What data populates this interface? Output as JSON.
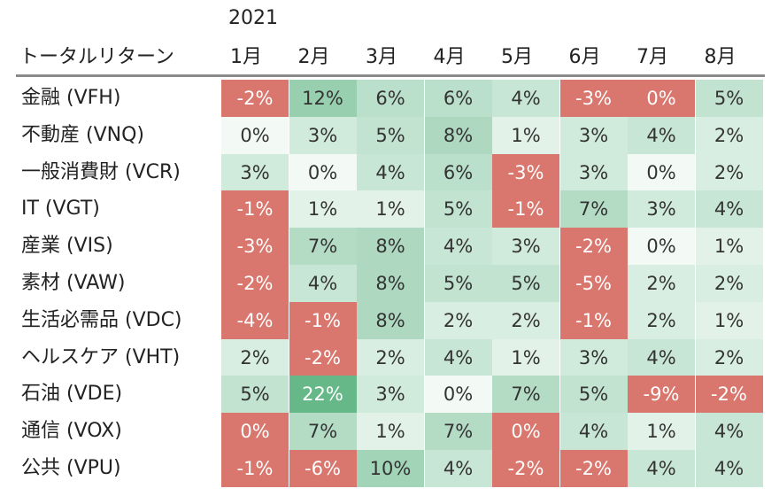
{
  "chart_data": {
    "type": "heatmap",
    "year_label": "2021",
    "corner_label": "トータルリターン",
    "columns": [
      "1月",
      "2月",
      "3月",
      "4月",
      "5月",
      "6月",
      "7月",
      "8月"
    ],
    "rows": [
      {
        "name": "金融 (VFH)",
        "values": [
          -2,
          12,
          6,
          6,
          4,
          -3,
          0,
          5
        ]
      },
      {
        "name": "不動産 (VNQ)",
        "values": [
          0,
          3,
          5,
          8,
          1,
          3,
          4,
          2
        ]
      },
      {
        "name": "一般消費財 (VCR)",
        "values": [
          3,
          0,
          4,
          6,
          -3,
          3,
          0,
          2
        ]
      },
      {
        "name": "IT (VGT)",
        "values": [
          -1,
          1,
          1,
          5,
          -1,
          7,
          3,
          4
        ]
      },
      {
        "name": "産業 (VIS)",
        "values": [
          -3,
          7,
          8,
          4,
          3,
          -2,
          0,
          1
        ]
      },
      {
        "name": "素材 (VAW)",
        "values": [
          -2,
          4,
          8,
          5,
          5,
          -5,
          2,
          2
        ]
      },
      {
        "name": "生活必需品 (VDC)",
        "values": [
          -4,
          -1,
          8,
          2,
          2,
          -1,
          2,
          1
        ]
      },
      {
        "name": "ヘルスケア (VHT)",
        "values": [
          2,
          -2,
          2,
          4,
          1,
          3,
          4,
          2
        ]
      },
      {
        "name": "石油 (VDE)",
        "values": [
          5,
          22,
          3,
          0,
          7,
          5,
          -9,
          -2
        ]
      },
      {
        "name": "通信 (VOX)",
        "values": [
          0,
          7,
          1,
          7,
          0,
          4,
          1,
          4
        ]
      },
      {
        "name": "公共 (VPU)",
        "values": [
          -1,
          -6,
          10,
          4,
          -2,
          -2,
          4,
          4
        ]
      }
    ],
    "value_suffix": "%",
    "colors": {
      "negative": "#d9766d",
      "positive_light": "#f3faf6",
      "positive_dark": "#66b889"
    },
    "negative_cells": [
      [
        0,
        0
      ],
      [
        0,
        5
      ],
      [
        0,
        6
      ],
      [
        2,
        4
      ],
      [
        3,
        0
      ],
      [
        3,
        4
      ],
      [
        4,
        0
      ],
      [
        4,
        5
      ],
      [
        5,
        0
      ],
      [
        5,
        5
      ],
      [
        6,
        0
      ],
      [
        6,
        1
      ],
      [
        6,
        5
      ],
      [
        7,
        1
      ],
      [
        8,
        6
      ],
      [
        8,
        7
      ],
      [
        9,
        0
      ],
      [
        9,
        4
      ],
      [
        10,
        0
      ],
      [
        10,
        1
      ],
      [
        10,
        4
      ],
      [
        10,
        5
      ]
    ]
  }
}
